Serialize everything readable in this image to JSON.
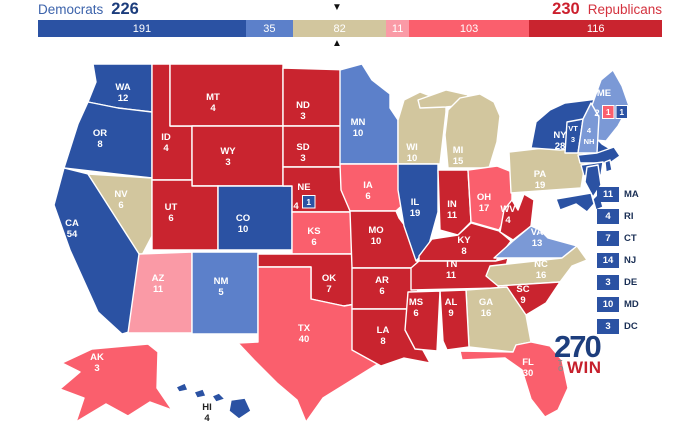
{
  "header": {
    "democrats_label": "Democrats",
    "democrats_total": "226",
    "republicans_total": "230",
    "republicans_label": "Republicans",
    "marker_down": "▼",
    "marker_up": "▲"
  },
  "colors": {
    "safe_dem": "#2b52a3",
    "likely_dem": "#5c80ca",
    "lean_dem": "#7b99d6",
    "tossup": "#d2c69e",
    "lean_rep": "#fa9aa6",
    "likely_rep": "#fa5f6d",
    "safe_rep": "#c9242f",
    "dem_label": "#3c63ab",
    "dem_total": "#1c3d7c",
    "rep_label": "#d4323e",
    "rep_total": "#cc1f2d",
    "logo_blue": "#1d3e7d",
    "logo_red": "#c6202c"
  },
  "bar": {
    "segments": [
      {
        "value": 191,
        "category": "safe_dem"
      },
      {
        "value": 35,
        "category": "likely_dem"
      },
      {
        "value": 82,
        "category": "tossup"
      },
      {
        "value": 11,
        "category": "lean_rep"
      },
      {
        "value": 103,
        "category": "likely_rep"
      },
      {
        "value": 116,
        "category": "safe_rep"
      }
    ]
  },
  "map": {
    "states": [
      {
        "abbr": "WA",
        "ev": "12",
        "category": "safe_dem"
      },
      {
        "abbr": "OR",
        "ev": "8",
        "category": "safe_dem"
      },
      {
        "abbr": "CA",
        "ev": "54",
        "category": "safe_dem"
      },
      {
        "abbr": "NV",
        "ev": "6",
        "category": "tossup"
      },
      {
        "abbr": "ID",
        "ev": "4",
        "category": "safe_rep"
      },
      {
        "abbr": "MT",
        "ev": "4",
        "category": "safe_rep"
      },
      {
        "abbr": "WY",
        "ev": "3",
        "category": "safe_rep"
      },
      {
        "abbr": "UT",
        "ev": "6",
        "category": "safe_rep"
      },
      {
        "abbr": "CO",
        "ev": "10",
        "category": "safe_dem"
      },
      {
        "abbr": "AZ",
        "ev": "11",
        "category": "lean_rep"
      },
      {
        "abbr": "NM",
        "ev": "5",
        "category": "likely_dem"
      },
      {
        "abbr": "ND",
        "ev": "3",
        "category": "safe_rep"
      },
      {
        "abbr": "SD",
        "ev": "3",
        "category": "safe_rep"
      },
      {
        "abbr": "NE",
        "ev": "4",
        "category": "safe_rep",
        "lines": [
          "NE"
        ]
      },
      {
        "abbr": "KS",
        "ev": "6",
        "category": "likely_rep"
      },
      {
        "abbr": "OK",
        "ev": "7",
        "category": "safe_rep"
      },
      {
        "abbr": "TX",
        "ev": "40",
        "category": "likely_rep"
      },
      {
        "abbr": "MN",
        "ev": "10",
        "category": "likely_dem"
      },
      {
        "abbr": "IA",
        "ev": "6",
        "category": "likely_rep"
      },
      {
        "abbr": "MO",
        "ev": "10",
        "category": "safe_rep"
      },
      {
        "abbr": "AR",
        "ev": "6",
        "category": "safe_rep"
      },
      {
        "abbr": "LA",
        "ev": "8",
        "category": "safe_rep"
      },
      {
        "abbr": "WI",
        "ev": "10",
        "category": "tossup"
      },
      {
        "abbr": "MI",
        "ev": "15",
        "category": "tossup"
      },
      {
        "abbr": "IL",
        "ev": "19",
        "category": "safe_dem"
      },
      {
        "abbr": "IN",
        "ev": "11",
        "category": "safe_rep"
      },
      {
        "abbr": "OH",
        "ev": "17",
        "category": "likely_rep"
      },
      {
        "abbr": "KY",
        "ev": "8",
        "category": "safe_rep"
      },
      {
        "abbr": "TN",
        "ev": "11",
        "category": "safe_rep"
      },
      {
        "abbr": "WV",
        "ev": "4",
        "category": "safe_rep"
      },
      {
        "abbr": "VA",
        "ev": "13",
        "category": "lean_dem"
      },
      {
        "abbr": "NC",
        "ev": "16",
        "category": "tossup"
      },
      {
        "abbr": "SC",
        "ev": "9",
        "category": "safe_rep"
      },
      {
        "abbr": "GA",
        "ev": "16",
        "category": "tossup"
      },
      {
        "abbr": "AL",
        "ev": "9",
        "category": "safe_rep"
      },
      {
        "abbr": "MS",
        "ev": "6",
        "category": "safe_rep"
      },
      {
        "abbr": "FL",
        "ev": "30",
        "category": "likely_rep"
      },
      {
        "abbr": "PA",
        "ev": "19",
        "category": "tossup"
      },
      {
        "abbr": "NY",
        "ev": "28",
        "category": "safe_dem"
      },
      {
        "abbr": "ME",
        "ev": "2",
        "category": "lean_dem",
        "lines": [
          "ME"
        ]
      },
      {
        "abbr": "VT",
        "ev": "3",
        "category": "safe_dem"
      },
      {
        "abbr": "NH",
        "ev": "4",
        "category": "lean_dem",
        "lines": [
          "4",
          "NH"
        ]
      },
      {
        "abbr": "MA",
        "ev": "11",
        "category": "safe_dem",
        "lines": []
      },
      {
        "abbr": "CT",
        "ev": "7",
        "category": "safe_dem",
        "lines": []
      },
      {
        "abbr": "RI",
        "ev": "4",
        "category": "safe_dem",
        "lines": []
      },
      {
        "abbr": "NJ",
        "ev": "14",
        "category": "safe_dem",
        "lines": []
      },
      {
        "abbr": "DE",
        "ev": "3",
        "category": "safe_dem",
        "lines": []
      },
      {
        "abbr": "MD",
        "ev": "10",
        "category": "safe_dem",
        "lines": []
      },
      {
        "abbr": "AK",
        "ev": "3",
        "category": "likely_rep"
      },
      {
        "abbr": "HI",
        "ev": "4",
        "category": "safe_dem"
      }
    ],
    "ne_statewide": "4",
    "ne_district": {
      "value": "1",
      "category": "safe_dem"
    },
    "me_statewide": "2",
    "me_districts": [
      {
        "value": "1",
        "category": "likely_rep"
      },
      {
        "value": "1",
        "category": "safe_dem"
      }
    ]
  },
  "sidebar": {
    "items": [
      {
        "ev": "11",
        "label": "MA"
      },
      {
        "ev": "4",
        "label": "RI"
      },
      {
        "ev": "7",
        "label": "CT"
      },
      {
        "ev": "14",
        "label": "NJ"
      },
      {
        "ev": "3",
        "label": "DE"
      },
      {
        "ev": "10",
        "label": "MD"
      },
      {
        "ev": "3",
        "label": "DC"
      }
    ]
  },
  "logo": {
    "number": "270",
    "to": "TO",
    "win": "WIN"
  }
}
